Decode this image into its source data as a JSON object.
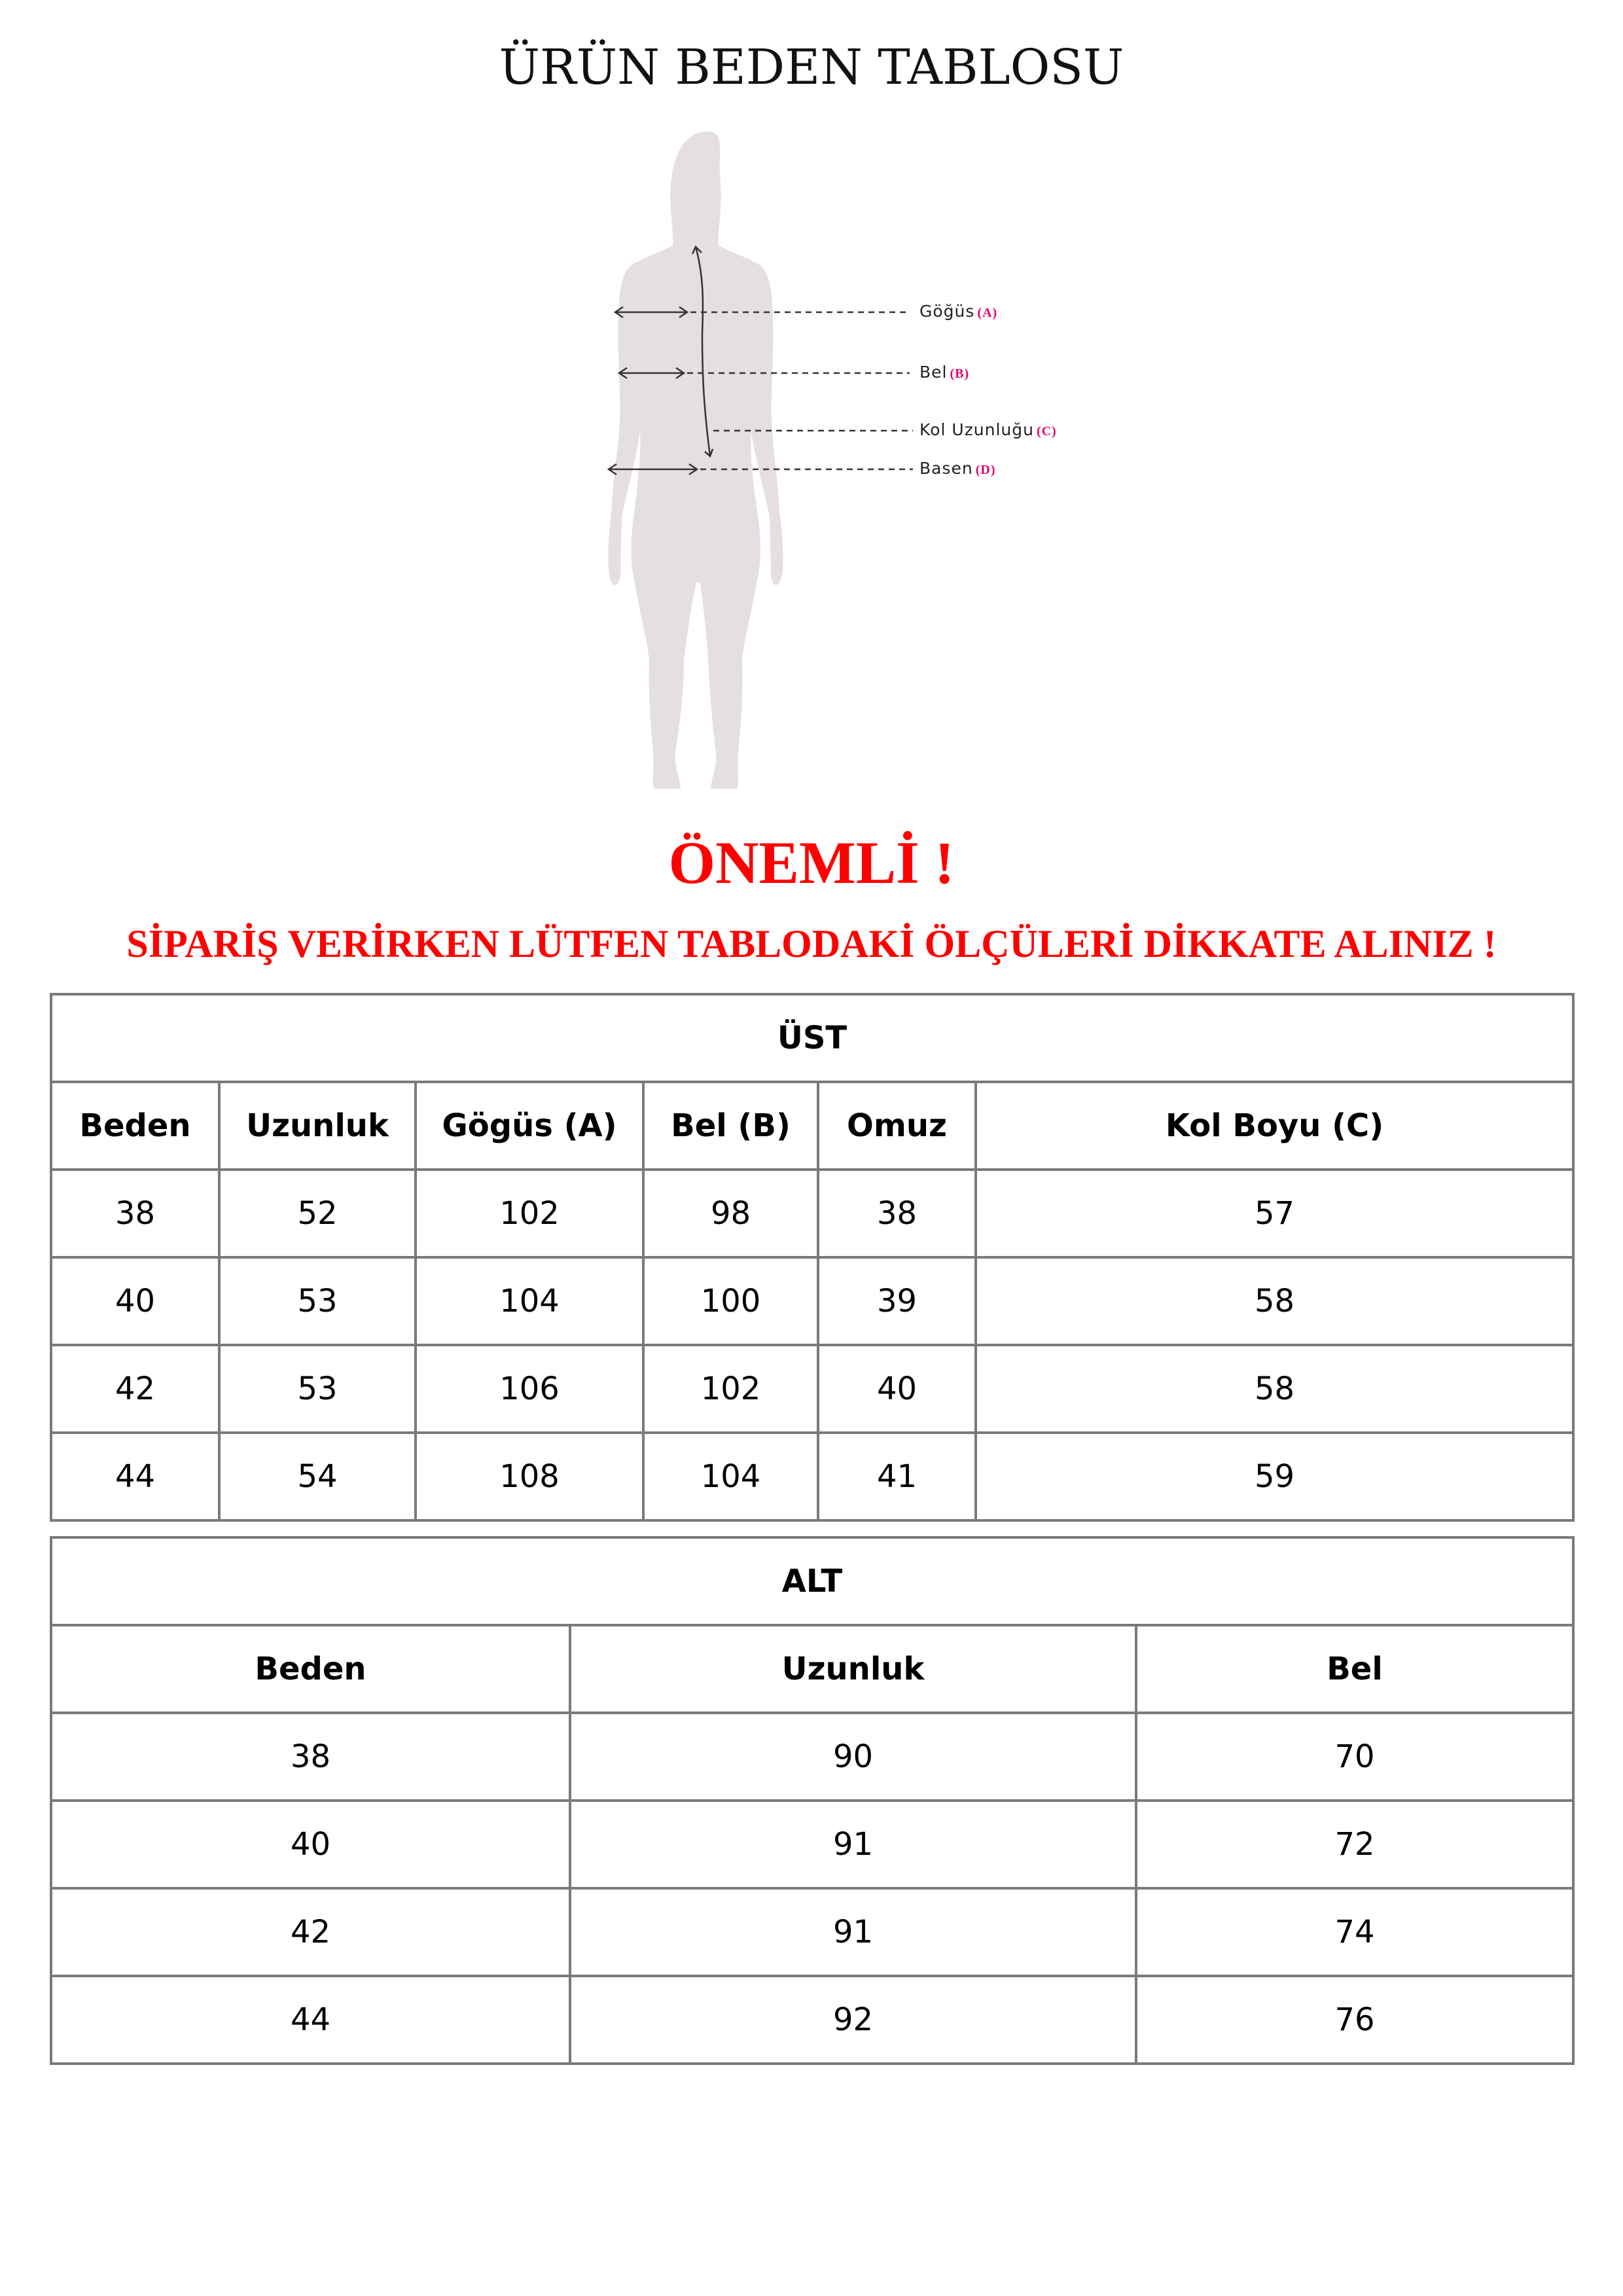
{
  "title": "ÜRÜN BEDEN TABLOSU",
  "figure": {
    "labels": [
      {
        "text": "Göğüs",
        "tag": "(A)"
      },
      {
        "text": "Bel",
        "tag": "(B)"
      },
      {
        "text": "Kol Uzunluğu",
        "tag": "(C)"
      },
      {
        "text": "Basen",
        "tag": "(D)"
      }
    ],
    "silhouette_color": "#e6dfe0",
    "tag_color": "#e6006e"
  },
  "important": "ÖNEMLİ !",
  "warning": "SİPARİŞ VERİRKEN LÜTFEN TABLODAKİ ÖLÇÜLERİ DİKKATE ALINIZ !",
  "ust": {
    "title": "ÜST",
    "headers": [
      "Beden",
      "Uzunluk",
      "Gögüs (A)",
      "Bel (B)",
      "Omuz",
      "Kol Boyu (C)"
    ],
    "rows": [
      [
        "38",
        "52",
        "102",
        "98",
        "38",
        "57"
      ],
      [
        "40",
        "53",
        "104",
        "100",
        "39",
        "58"
      ],
      [
        "42",
        "53",
        "106",
        "102",
        "40",
        "58"
      ],
      [
        "44",
        "54",
        "108",
        "104",
        "41",
        "59"
      ]
    ]
  },
  "alt": {
    "title": "ALT",
    "headers": [
      "Beden",
      "Uzunluk",
      "Bel"
    ],
    "rows": [
      [
        "38",
        "90",
        "70"
      ],
      [
        "40",
        "91",
        "72"
      ],
      [
        "42",
        "91",
        "74"
      ],
      [
        "44",
        "92",
        "76"
      ]
    ]
  }
}
